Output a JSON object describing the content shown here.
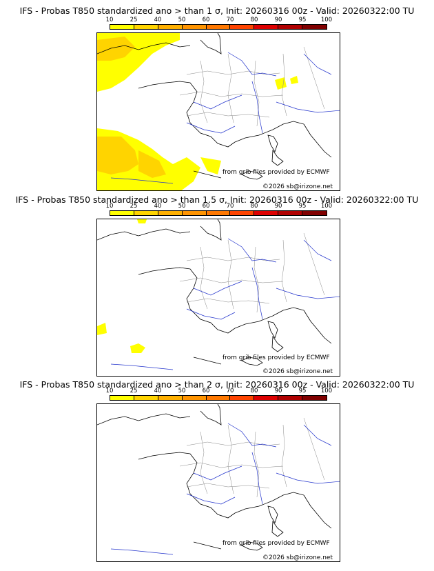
{
  "colorbar": {
    "ticks": [
      "10",
      "25",
      "40",
      "50",
      "60",
      "70",
      "80",
      "90",
      "95",
      "100"
    ],
    "colors": [
      "#ffff00",
      "#ffd400",
      "#ffb000",
      "#ff9400",
      "#ff7800",
      "#ff4400",
      "#dd0000",
      "#b00000",
      "#800000"
    ]
  },
  "panels": [
    {
      "title": "IFS - Probas T850  standardized ano > than 1 σ, Init: 20260316 00z - Valid: 20260322:00 TU",
      "credit_source": "from grib files provided by ECMWF",
      "credit_copyright": "©2026 sb@irizone.net"
    },
    {
      "title": "IFS - Probas T850  standardized ano > than 1.5 σ, Init: 20260316 00z - Valid: 20260322:00 TU",
      "credit_source": "from grib files provided by ECMWF",
      "credit_copyright": "©2026 sb@irizone.net"
    },
    {
      "title": "IFS - Probas T850  standardized ano > than 2 σ, Init: 20260316 00z - Valid: 20260322:00 TU",
      "credit_source": "from grib files provided by ECMWF",
      "credit_copyright": "©2026 sb@irizone.net"
    }
  ]
}
